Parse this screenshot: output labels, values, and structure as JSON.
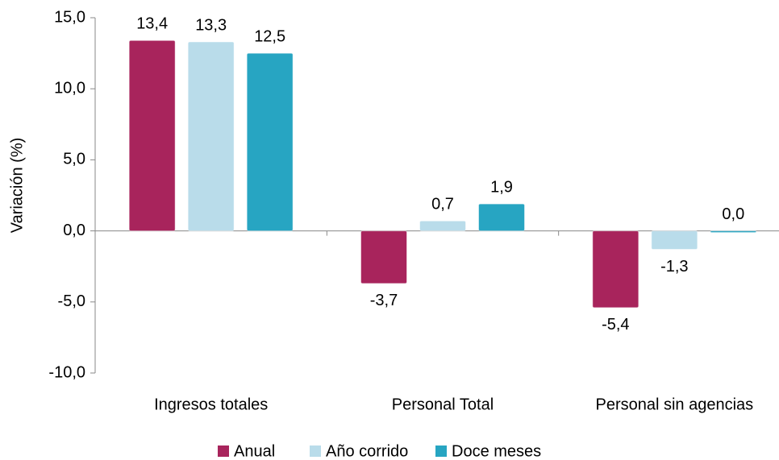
{
  "chart_data": {
    "type": "bar",
    "y_label": "Variación (%)",
    "categories": [
      "Ingresos totales",
      "Personal Total",
      "Personal sin agencias"
    ],
    "series": [
      {
        "name": "Anual",
        "color": "#a8245c",
        "values": [
          13.4,
          -3.7,
          -5.4
        ],
        "value_labels": [
          "13,4",
          "-3,7",
          "-5,4"
        ]
      },
      {
        "name": "Año corrido",
        "color": "#b9dcea",
        "values": [
          13.3,
          0.7,
          -1.3
        ],
        "value_labels": [
          "13,3",
          "0,7",
          "-1,3"
        ]
      },
      {
        "name": "Doce meses",
        "color": "#27a5c2",
        "values": [
          12.5,
          1.9,
          0.0
        ],
        "value_labels": [
          "12,5",
          "1,9",
          "0,0"
        ]
      }
    ],
    "ylim": [
      -10,
      15
    ],
    "yticks": [
      {
        "value": -10,
        "label": "-10,0"
      },
      {
        "value": -5,
        "label": "-5,0"
      },
      {
        "value": 0,
        "label": "0,0"
      },
      {
        "value": 5,
        "label": "5,0"
      },
      {
        "value": 10,
        "label": "10,0"
      },
      {
        "value": 15,
        "label": "15,0"
      }
    ],
    "legend": "bottom"
  }
}
